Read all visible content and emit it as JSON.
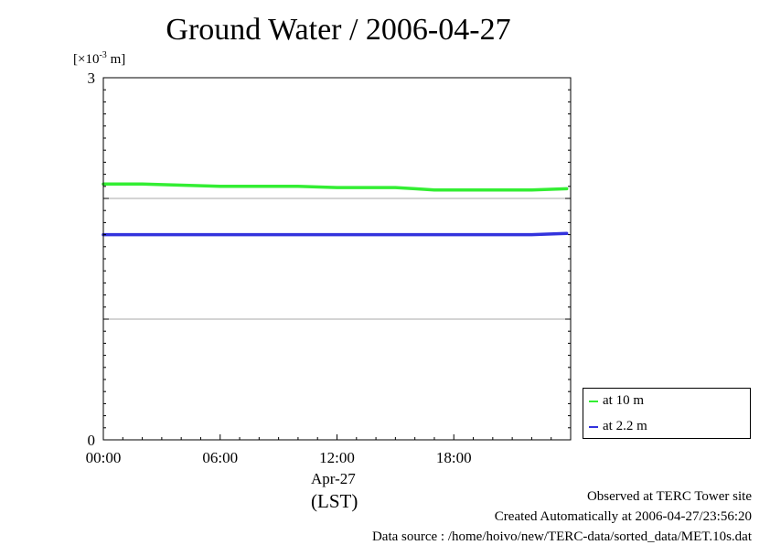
{
  "chart_data": {
    "type": "line",
    "title": "Ground Water / 2006-04-27",
    "y_unit": {
      "base": "[×10",
      "exponent": "-3",
      "suffix": " m]"
    },
    "ylim": [
      0,
      3
    ],
    "y_ticks": [
      "0",
      "3"
    ],
    "y_gridlines": [
      1,
      2
    ],
    "xlim": [
      0,
      24
    ],
    "x_ticks": [
      {
        "value": 0,
        "label": "00:00"
      },
      {
        "value": 6,
        "label": "06:00"
      },
      {
        "value": 12,
        "label": "12:00"
      },
      {
        "value": 18,
        "label": "18:00"
      }
    ],
    "x_date_label": "Apr-27",
    "x_timezone_label": "(LST)",
    "grid": "horizontal",
    "legend_position": "right-bottom",
    "series": [
      {
        "name": "at 10 m",
        "color": "#33ee33",
        "x": [
          0,
          2,
          4,
          6,
          8,
          10,
          12,
          14,
          15,
          16,
          17,
          18,
          19,
          20,
          21,
          22,
          23.8
        ],
        "y": [
          2.12,
          2.12,
          2.11,
          2.1,
          2.1,
          2.1,
          2.09,
          2.09,
          2.09,
          2.08,
          2.07,
          2.07,
          2.07,
          2.07,
          2.07,
          2.07,
          2.08
        ]
      },
      {
        "name": "at 2.2 m",
        "color": "#3333dd",
        "x": [
          0,
          2,
          4,
          6,
          8,
          10,
          12,
          14,
          16,
          18,
          20,
          22,
          23.8
        ],
        "y": [
          1.7,
          1.7,
          1.7,
          1.7,
          1.7,
          1.7,
          1.7,
          1.7,
          1.7,
          1.7,
          1.7,
          1.7,
          1.71
        ]
      }
    ]
  },
  "footer": {
    "observed": "Observed at TERC Tower site",
    "created": "Created Automatically at 2006-04-27/23:56:20",
    "source": "Data source : /home/hoivo/new/TERC-data/sorted_data/MET.10s.dat"
  }
}
